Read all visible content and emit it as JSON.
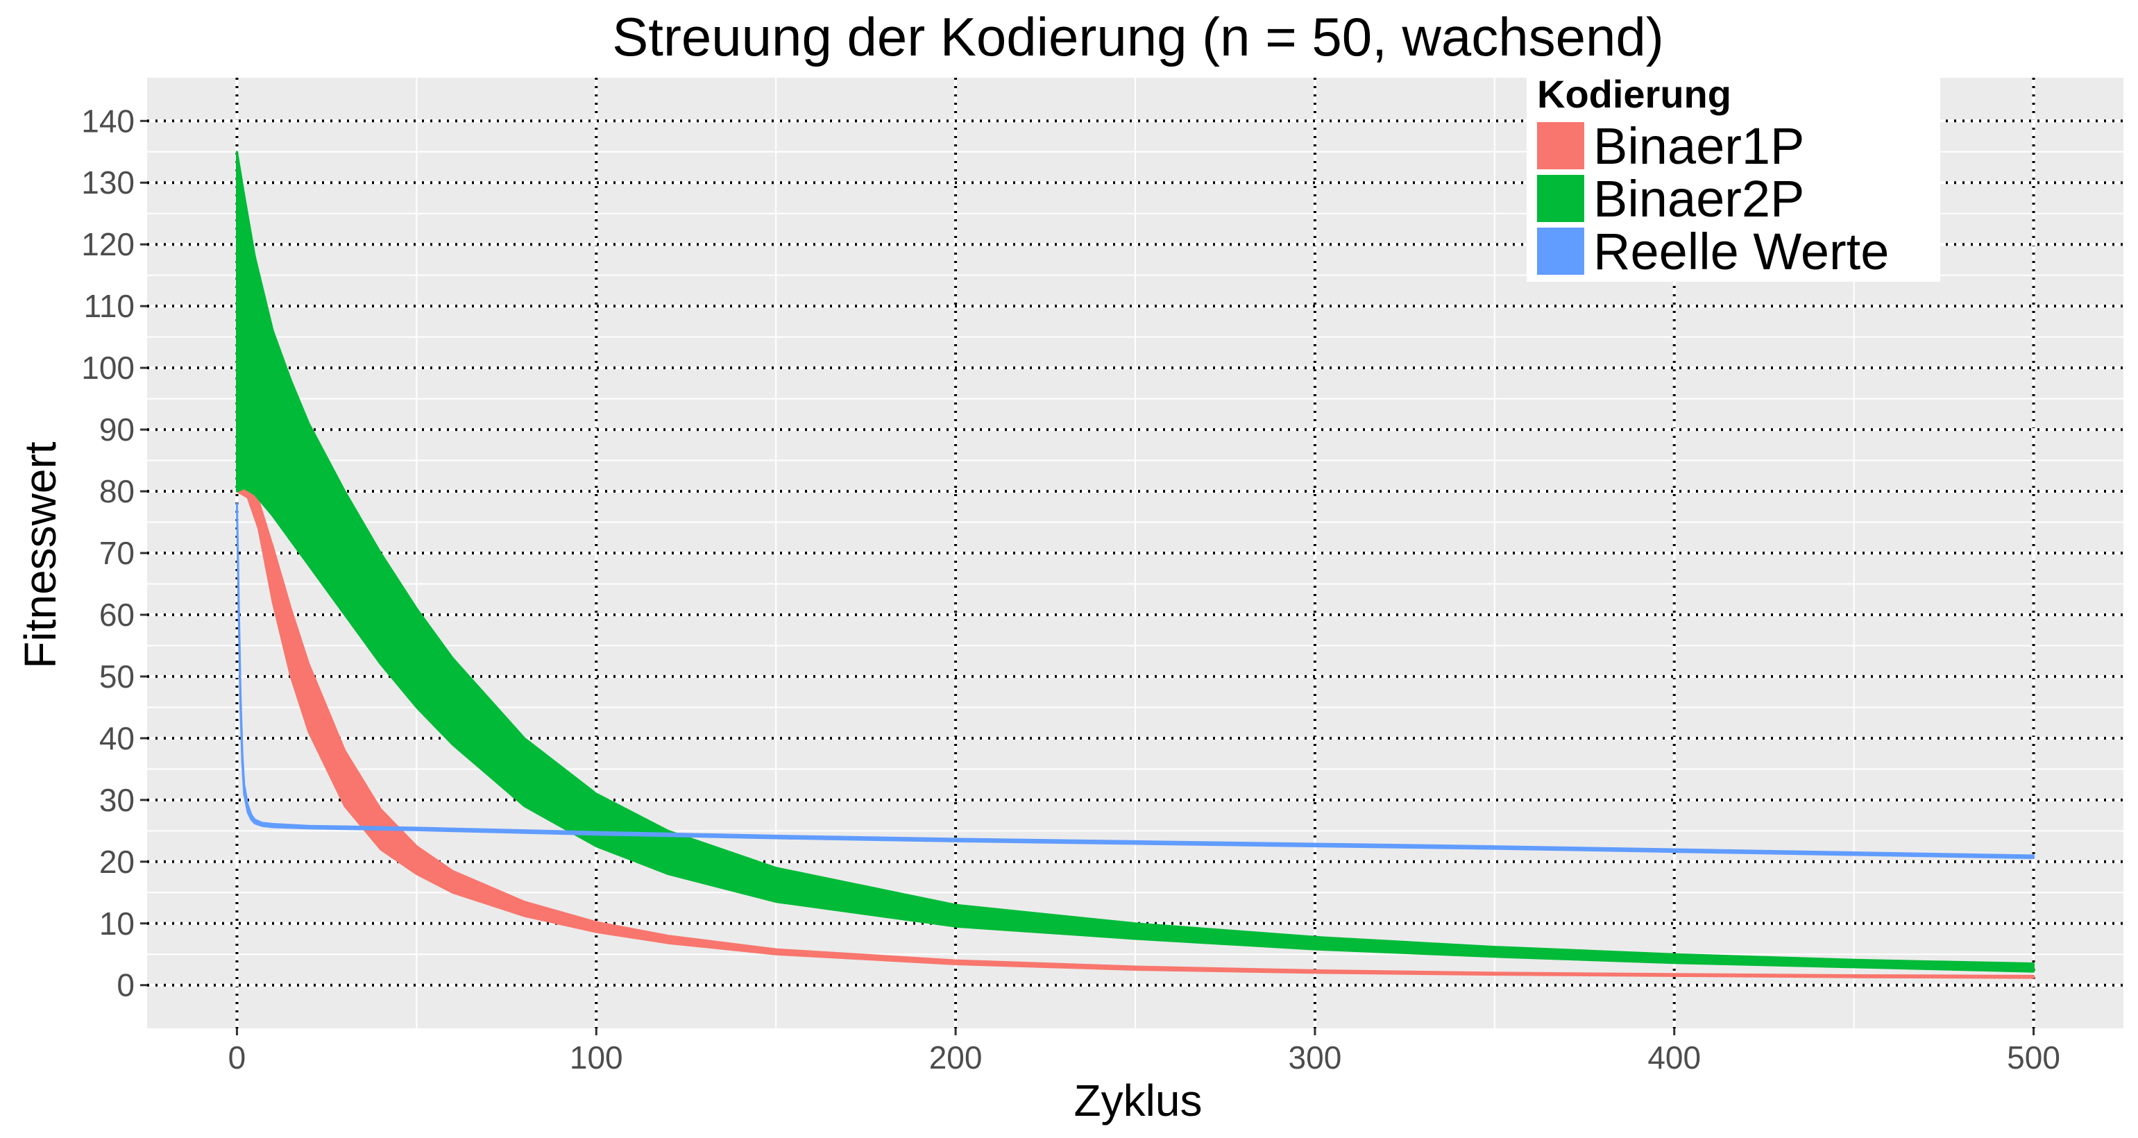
{
  "chart_data": {
    "type": "area",
    "title": "Streuung der Kodierung (n = 50, wachsend)",
    "xlabel": "Zyklus",
    "ylabel": "Fitnesswert",
    "xlim": [
      -25,
      525
    ],
    "ylim": [
      -7,
      147
    ],
    "x_ticks": [
      0,
      100,
      200,
      300,
      400,
      500
    ],
    "y_ticks": [
      0,
      10,
      20,
      30,
      40,
      50,
      60,
      70,
      80,
      90,
      100,
      110,
      120,
      130,
      140
    ],
    "grid": true,
    "legend": {
      "title": "Kodierung",
      "position": "top-right"
    },
    "series": [
      {
        "name": "Binaer1P",
        "color": "#F8766D",
        "x": [
          0,
          3,
          6,
          10,
          15,
          20,
          30,
          40,
          50,
          60,
          80,
          100,
          120,
          150,
          200,
          250,
          300,
          350,
          400,
          450,
          500
        ],
        "lower": [
          80,
          79,
          74,
          62,
          50,
          41,
          29,
          22,
          18,
          15,
          11.2,
          8.6,
          6.8,
          5,
          3.4,
          2.5,
          2,
          1.7,
          1.5,
          1.3,
          1.2
        ],
        "upper": [
          81,
          80.5,
          78.5,
          71,
          61,
          52,
          38,
          28.5,
          22.5,
          18.5,
          13.5,
          10.2,
          8,
          5.8,
          4,
          3,
          2.4,
          2,
          1.8,
          1.6,
          1.5
        ]
      },
      {
        "name": "Binaer2P",
        "color": "#00BA38",
        "x": [
          0,
          2,
          5,
          10,
          15,
          20,
          30,
          40,
          50,
          60,
          80,
          100,
          120,
          150,
          200,
          250,
          300,
          350,
          400,
          450,
          500
        ],
        "lower": [
          80,
          80.5,
          79.5,
          76,
          72,
          68,
          60,
          52,
          45,
          39,
          29,
          22.5,
          18,
          13.5,
          9.5,
          7.5,
          5.8,
          4.6,
          3.6,
          2.9,
          2.2
        ],
        "upper": [
          135,
          128,
          118,
          106,
          98,
          91,
          80,
          70,
          61,
          53,
          40,
          31,
          25,
          19,
          13,
          10,
          7.8,
          6.2,
          5,
          4.1,
          3.5
        ]
      },
      {
        "name": "Reelle Werte",
        "color": "#619CFF",
        "x": [
          0,
          0.5,
          1,
          1.5,
          2,
          3,
          4,
          5,
          7,
          10,
          20,
          50,
          100,
          150,
          200,
          250,
          300,
          350,
          400,
          450,
          500
        ],
        "lower": [
          77,
          60,
          45,
          36,
          31,
          28,
          26.8,
          26.2,
          25.8,
          25.6,
          25.4,
          25.1,
          24.4,
          23.8,
          23.3,
          22.9,
          22.5,
          22.1,
          21.6,
          21.1,
          20.6
        ],
        "upper": [
          78,
          62,
          47,
          37.5,
          32.5,
          29.2,
          27.6,
          26.8,
          26.3,
          26.1,
          25.8,
          25.5,
          24.8,
          24.2,
          23.7,
          23.3,
          22.9,
          22.5,
          22,
          21.5,
          21
        ]
      }
    ]
  }
}
